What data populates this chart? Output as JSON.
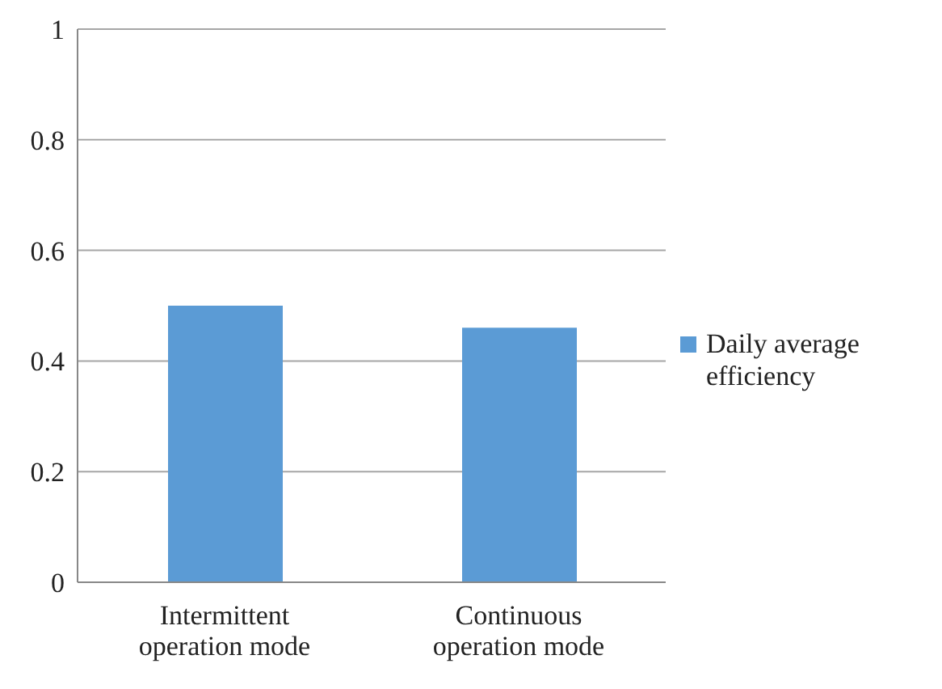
{
  "chart_data": {
    "type": "bar",
    "categories": [
      "Intermittent operation mode",
      "Continuous operation mode"
    ],
    "series": [
      {
        "name": "Daily average efficiency",
        "color": "#5b9bd5",
        "values": [
          0.5,
          0.46
        ]
      }
    ],
    "ylim": [
      0,
      1
    ],
    "yticks": [
      0,
      0.2,
      0.4,
      0.6,
      0.8,
      1
    ],
    "grid": "y",
    "legend": "right"
  }
}
